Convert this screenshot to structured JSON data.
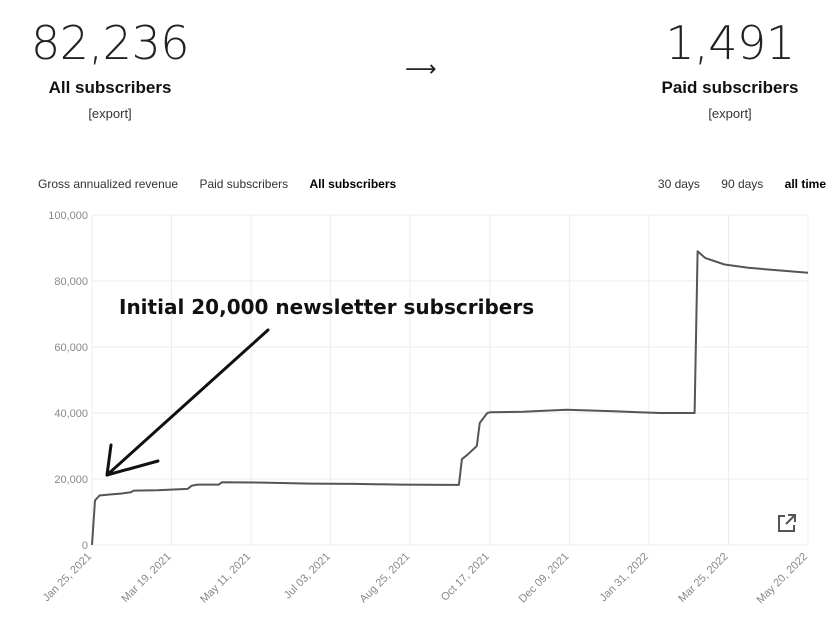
{
  "stats": {
    "all": {
      "value": "82,236",
      "label": "All subscribers",
      "export": "[export]"
    },
    "paid": {
      "value": "1,491",
      "label": "Paid subscribers",
      "export": "[export]"
    },
    "arrow": "⟶"
  },
  "metric_tabs": [
    {
      "label": "Gross annualized revenue",
      "active": false
    },
    {
      "label": "Paid subscribers",
      "active": false
    },
    {
      "label": "All subscribers",
      "active": true
    }
  ],
  "range_tabs": [
    {
      "label": "30 days",
      "active": false
    },
    {
      "label": "90 days",
      "active": false
    },
    {
      "label": "all time",
      "active": true
    }
  ],
  "annotation": "Initial 20,000 newsletter subscribers",
  "external_icon": "external-link-icon",
  "chart_data": {
    "type": "line",
    "title": "",
    "xlabel": "",
    "ylabel": "",
    "ylim": [
      0,
      100000
    ],
    "grid": true,
    "y_ticks": [
      "0",
      "20,000",
      "40,000",
      "60,000",
      "80,000",
      "100,000"
    ],
    "y_tick_values": [
      0,
      20000,
      40000,
      60000,
      80000,
      100000
    ],
    "x_ticks": [
      "Jan 25, 2021",
      "Mar 19, 2021",
      "May 11, 2021",
      "Jul 03, 2021",
      "Aug 25, 2021",
      "Oct 17, 2021",
      "Dec 09, 2021",
      "Jan 31, 2022",
      "Mar 25, 2022",
      "May 20, 2022"
    ],
    "series": [
      {
        "color": "#555555",
        "x": [
          "2021-01-25",
          "2021-01-27",
          "2021-01-30",
          "2021-02-04",
          "2021-02-14",
          "2021-02-20",
          "2021-02-22",
          "2021-03-10",
          "2021-03-30",
          "2021-04-02",
          "2021-04-06",
          "2021-04-20",
          "2021-04-22",
          "2021-05-20",
          "2021-06-20",
          "2021-07-20",
          "2021-08-20",
          "2021-09-20",
          "2021-09-28",
          "2021-09-30",
          "2021-10-04",
          "2021-10-10",
          "2021-10-12",
          "2021-10-17",
          "2021-10-19",
          "2021-11-10",
          "2021-12-09",
          "2022-01-10",
          "2022-02-10",
          "2022-03-05",
          "2022-03-07",
          "2022-03-12",
          "2022-03-25",
          "2022-04-10",
          "2022-05-20"
        ],
        "y": [
          0,
          13500,
          15000,
          15200,
          15600,
          16000,
          16500,
          16600,
          17000,
          18000,
          18300,
          18300,
          19000,
          18900,
          18600,
          18500,
          18300,
          18200,
          18200,
          26000,
          27500,
          30000,
          37000,
          40000,
          40200,
          40400,
          41000,
          40500,
          40000,
          40000,
          89000,
          87000,
          85000,
          84000,
          82500
        ]
      }
    ]
  }
}
